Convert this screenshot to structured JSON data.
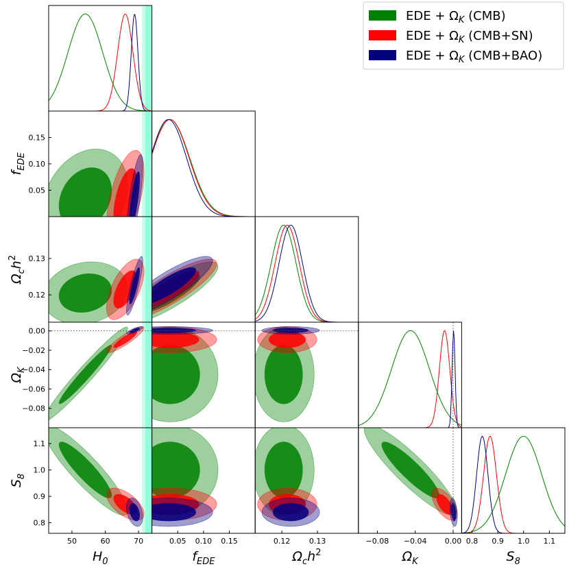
{
  "chart_data": {
    "type": "triangle",
    "params": [
      {
        "key": "H0",
        "label_main": "H",
        "label_sub": "0",
        "range": [
          43,
          74
        ],
        "ticks": [
          50,
          60,
          70
        ],
        "tick_labels": [
          "50",
          "60",
          "70"
        ]
      },
      {
        "key": "fEDE",
        "label_main": "f",
        "label_sub": "EDE",
        "range": [
          0.0,
          0.2
        ],
        "ticks": [
          0.05,
          0.1,
          0.15
        ],
        "tick_labels": [
          "0.05",
          "0.10",
          "0.15"
        ]
      },
      {
        "key": "Och2",
        "label_main": "Ω",
        "label_sub": "c",
        "label_tail": "h",
        "label_sup": "2",
        "range": [
          0.1125,
          0.1415
        ],
        "ticks": [
          0.12,
          0.13
        ],
        "tick_labels": [
          "0.12",
          "0.13"
        ]
      },
      {
        "key": "OK",
        "label_main": "Ω",
        "label_sub": "K",
        "range": [
          -0.1,
          0.009
        ],
        "ticks": [
          -0.08,
          -0.06,
          -0.04,
          -0.02,
          0.0
        ],
        "tick_labels": [
          "−0.08",
          "−0.06",
          "−0.04",
          "−0.02",
          "0.00"
        ],
        "x_tick_labels": [
          "−0.08",
          "−0.04",
          "0.00"
        ],
        "x_ticks": [
          -0.08,
          -0.04,
          0.0
        ]
      },
      {
        "key": "S8",
        "label_main": "S",
        "label_sub": "8",
        "range": [
          0.76,
          1.16
        ],
        "ticks": [
          0.8,
          0.9,
          1.0,
          1.1
        ],
        "tick_labels": [
          "0.8",
          "0.9",
          "1.0",
          "1.1"
        ],
        "x_ticks": [
          0.8,
          0.9,
          1.0,
          1.1
        ],
        "x_tick_labels": [
          "0.8",
          "0.9",
          "1.0",
          "1.1"
        ]
      }
    ],
    "series": [
      {
        "name": "EDE + Ω_K (CMB)",
        "legend_pre": "EDE + Ω",
        "legend_sub": "K",
        "legend_post": " (CMB)",
        "color": "#008000",
        "fill": "#008000",
        "means": {
          "H0": 54.0,
          "fEDE": 0.035,
          "Och2": 0.1205,
          "OK": -0.045,
          "S8": 1.0
        },
        "sigmas": {
          "H0": 5.2,
          "fEDE": 0.038,
          "Och2": 0.0035,
          "OK": 0.02,
          "S8": 0.07
        }
      },
      {
        "name": "EDE + Ω_K (CMB+SN)",
        "legend_pre": "EDE + Ω",
        "legend_sub": "K",
        "legend_post": " (CMB+SN)",
        "color": "#ff0000",
        "fill": "#ff0000",
        "means": {
          "H0": 66.0,
          "fEDE": 0.035,
          "Och2": 0.1215,
          "OK": -0.009,
          "S8": 0.87
        },
        "sigmas": {
          "H0": 2.3,
          "fEDE": 0.037,
          "Och2": 0.0034,
          "OK": 0.0055,
          "S8": 0.025
        }
      },
      {
        "name": "EDE + Ω_K (CMB+BAO)",
        "legend_pre": "EDE + Ω",
        "legend_sub": "K",
        "legend_post": " (CMB+BAO)",
        "color": "#000080",
        "fill": "#000080",
        "means": {
          "H0": 68.8,
          "fEDE": 0.032,
          "Och2": 0.1225,
          "OK": 0.0005,
          "S8": 0.84
        },
        "sigmas": {
          "H0": 1.0,
          "fEDE": 0.035,
          "Och2": 0.0033,
          "OK": 0.0016,
          "S8": 0.022
        }
      }
    ],
    "correlations": {
      "H0|fEDE": [
        0.25,
        0.55,
        0.75
      ],
      "H0|Och2": [
        0.15,
        0.6,
        0.85
      ],
      "H0|OK": [
        0.97,
        0.9,
        0.8
      ],
      "H0|S8": [
        -0.9,
        -0.6,
        -0.35
      ],
      "fEDE|Och2": [
        0.85,
        0.85,
        0.85
      ],
      "fEDE|OK": [
        0.0,
        0.0,
        0.0
      ],
      "fEDE|S8": [
        0.0,
        0.0,
        0.0
      ],
      "Och2|OK": [
        0.0,
        0.0,
        0.0
      ],
      "Och2|S8": [
        0.0,
        0.0,
        0.0
      ],
      "OK|S8": [
        -0.9,
        -0.6,
        -0.3
      ]
    },
    "reference_band_H0": {
      "center": 73.0,
      "inner_half_width": 1.0,
      "outer_half_width": 2.0,
      "color": "#7fffd4"
    },
    "reference_line_OK": 0.0,
    "legend": {
      "placement": "top-right"
    }
  }
}
